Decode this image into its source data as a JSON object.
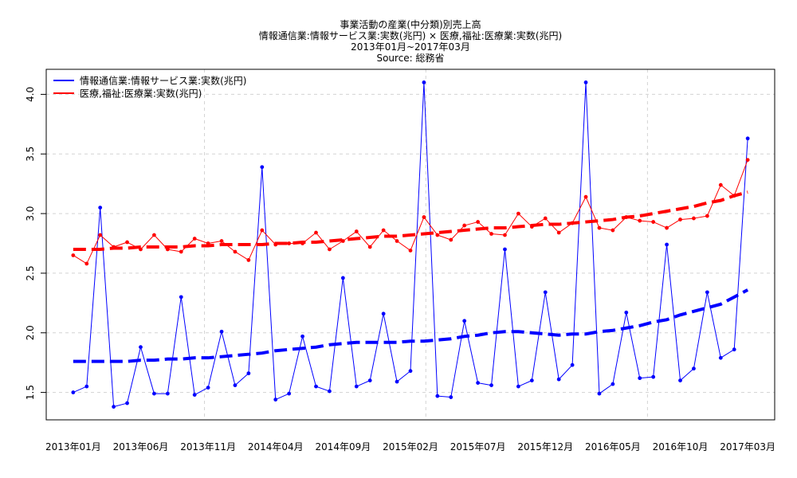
{
  "chart_data": {
    "type": "line",
    "title": "事業活動の産業(中分類)別売上高",
    "subtitle": "情報通信業:情報サービス業:実数(兆円) × 医療,福祉:医療業:実数(兆円)",
    "period": "2013年01月~2017年03月",
    "source": "Source: 総務省",
    "xlabel": "",
    "ylabel": "",
    "grid": true,
    "legend_position": "top-left",
    "ylim": [
      1.27,
      4.21
    ],
    "y_ticks": [
      "1.5",
      "2.0",
      "2.5",
      "3.0",
      "3.5",
      "4.0"
    ],
    "x_ticks": [
      "2013年01月",
      "2013年06月",
      "2013年11月",
      "2014年04月",
      "2014年09月",
      "2015年02月",
      "2015年07月",
      "2015年12月",
      "2016年05月",
      "2016年10月",
      "2017年03月"
    ],
    "x": [
      "2013年01月",
      "2013年02月",
      "2013年03月",
      "2013年04月",
      "2013年05月",
      "2013年06月",
      "2013年07月",
      "2013年08月",
      "2013年09月",
      "2013年10月",
      "2013年11月",
      "2013年12月",
      "2014年01月",
      "2014年02月",
      "2014年03月",
      "2014年04月",
      "2014年05月",
      "2014年06月",
      "2014年07月",
      "2014年08月",
      "2014年09月",
      "2014年10月",
      "2014年11月",
      "2014年12月",
      "2015年01月",
      "2015年02月",
      "2015年03月",
      "2015年04月",
      "2015年05月",
      "2015年06月",
      "2015年07月",
      "2015年08月",
      "2015年09月",
      "2015年10月",
      "2015年11月",
      "2015年12月",
      "2016年01月",
      "2016年02月",
      "2016年03月",
      "2016年04月",
      "2016年05月",
      "2016年06月",
      "2016年07月",
      "2016年08月",
      "2016年09月",
      "2016年10月",
      "2016年11月",
      "2016年12月",
      "2017年01月",
      "2017年02月",
      "2017年03月"
    ],
    "series": [
      {
        "name": "情報通信業:情報サービス業:実数(兆円)",
        "color": "#0000FF",
        "values": [
          1.5,
          1.55,
          3.05,
          1.38,
          1.41,
          1.88,
          1.49,
          1.49,
          2.3,
          1.48,
          1.54,
          2.01,
          1.56,
          1.66,
          3.39,
          1.44,
          1.49,
          1.97,
          1.55,
          1.51,
          2.46,
          1.55,
          1.6,
          2.16,
          1.59,
          1.68,
          4.1,
          1.47,
          1.46,
          2.1,
          1.58,
          1.56,
          2.7,
          1.55,
          1.6,
          2.34,
          1.61,
          1.73,
          4.1,
          1.49,
          1.57,
          2.17,
          1.62,
          1.63,
          2.74,
          1.6,
          1.7,
          2.34,
          1.79,
          1.86,
          3.63
        ],
        "trend": [
          1.76,
          1.76,
          1.76,
          1.76,
          1.76,
          1.77,
          1.77,
          1.78,
          1.78,
          1.79,
          1.79,
          1.8,
          1.81,
          1.82,
          1.83,
          1.85,
          1.86,
          1.87,
          1.88,
          1.9,
          1.91,
          1.92,
          1.92,
          1.92,
          1.92,
          1.93,
          1.93,
          1.94,
          1.95,
          1.97,
          1.98,
          2.0,
          2.01,
          2.01,
          2.0,
          1.99,
          1.98,
          1.99,
          1.99,
          2.01,
          2.02,
          2.04,
          2.06,
          2.09,
          2.11,
          2.15,
          2.18,
          2.21,
          2.24,
          2.3,
          2.36
        ]
      },
      {
        "name": "医療,福祉:医療業:実数(兆円)",
        "color": "#FF0000",
        "values": [
          2.65,
          2.58,
          2.82,
          2.72,
          2.76,
          2.7,
          2.82,
          2.7,
          2.68,
          2.79,
          2.75,
          2.77,
          2.68,
          2.61,
          2.86,
          2.74,
          2.75,
          2.75,
          2.84,
          2.7,
          2.77,
          2.85,
          2.72,
          2.86,
          2.77,
          2.69,
          2.97,
          2.82,
          2.78,
          2.9,
          2.93,
          2.83,
          2.82,
          3.0,
          2.89,
          2.96,
          2.84,
          2.92,
          3.14,
          2.88,
          2.86,
          2.97,
          2.94,
          2.93,
          2.88,
          2.95,
          2.96,
          2.98,
          3.24,
          3.15,
          3.45
        ],
        "trend": [
          2.7,
          2.7,
          2.7,
          2.71,
          2.71,
          2.72,
          2.72,
          2.72,
          2.72,
          2.73,
          2.73,
          2.74,
          2.74,
          2.74,
          2.74,
          2.75,
          2.75,
          2.76,
          2.76,
          2.77,
          2.78,
          2.79,
          2.8,
          2.81,
          2.81,
          2.82,
          2.83,
          2.84,
          2.85,
          2.86,
          2.87,
          2.88,
          2.88,
          2.89,
          2.9,
          2.91,
          2.91,
          2.92,
          2.93,
          2.94,
          2.95,
          2.97,
          2.98,
          3.0,
          3.02,
          3.04,
          3.06,
          3.09,
          3.11,
          3.15,
          3.18
        ]
      }
    ]
  }
}
